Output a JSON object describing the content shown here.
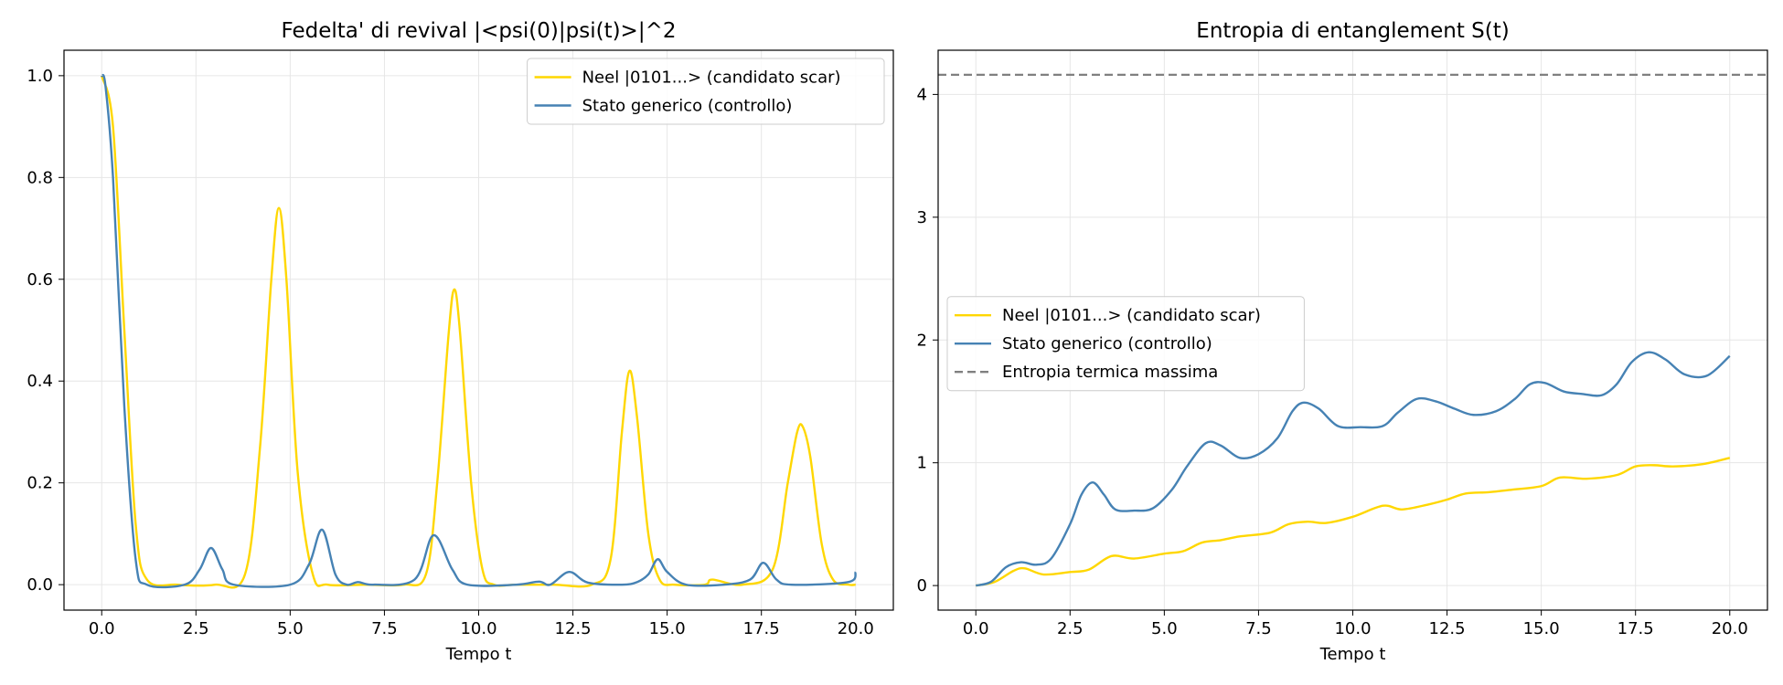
{
  "colors": {
    "scar": "#FFD700",
    "generic": "#4682B4",
    "thermal": "#808080"
  },
  "chart_data": [
    {
      "type": "line",
      "title": "Fedelta' di revival |<psi(0)|psi(t)>|^2",
      "xlabel": "Tempo t",
      "ylabel": "",
      "xlim": [
        -1.0,
        21.0
      ],
      "ylim": [
        -0.05,
        1.05
      ],
      "xticks": [
        0,
        2.5,
        5,
        7.5,
        10,
        12.5,
        15,
        17.5,
        20
      ],
      "xtick_labels": [
        "0.0",
        "2.5",
        "5.0",
        "7.5",
        "10.0",
        "12.5",
        "15.0",
        "17.5",
        "20.0"
      ],
      "yticks": [
        0,
        0.2,
        0.4,
        0.6,
        0.8,
        1.0
      ],
      "ytick_labels": [
        "0.0",
        "0.2",
        "0.4",
        "0.6",
        "0.8",
        "1.0"
      ],
      "grid": true,
      "legend_position": "top-right",
      "series": [
        {
          "name": "Neel |0101...> (candidato scar)",
          "color": "#FFD700",
          "x": [
            0,
            0.3,
            0.6,
            0.9,
            1.2,
            2.0,
            3.0,
            3.8,
            4.2,
            4.5,
            4.7,
            4.9,
            5.2,
            5.6,
            6.0,
            7.0,
            8.0,
            8.6,
            8.9,
            9.2,
            9.35,
            9.5,
            9.8,
            10.1,
            10.4,
            11.0,
            12.0,
            13.0,
            13.5,
            13.8,
            14.0,
            14.2,
            14.5,
            14.8,
            15.2,
            16.0,
            16.2,
            17.0,
            17.8,
            18.2,
            18.45,
            18.6,
            18.8,
            19.1,
            19.4,
            19.8,
            20.0
          ],
          "y": [
            1.0,
            0.9,
            0.5,
            0.12,
            0.01,
            0.0,
            0.0,
            0.02,
            0.27,
            0.6,
            0.74,
            0.6,
            0.22,
            0.02,
            0.0,
            0.0,
            0.0,
            0.02,
            0.2,
            0.49,
            0.58,
            0.5,
            0.2,
            0.03,
            0.0,
            0.0,
            0.0,
            0.0,
            0.05,
            0.3,
            0.42,
            0.33,
            0.1,
            0.01,
            0.0,
            0.0,
            0.01,
            0.0,
            0.03,
            0.2,
            0.3,
            0.31,
            0.25,
            0.08,
            0.01,
            0.0,
            0.0
          ]
        },
        {
          "name": "Stato generico (controllo)",
          "color": "#4682B4",
          "x": [
            0,
            0.1,
            0.3,
            0.6,
            0.9,
            1.2,
            2.2,
            2.6,
            2.9,
            3.2,
            3.5,
            5.0,
            5.5,
            5.85,
            6.2,
            6.5,
            6.8,
            7.2,
            8.3,
            8.8,
            9.3,
            9.7,
            11.0,
            11.6,
            11.9,
            12.4,
            12.9,
            13.8,
            14.2,
            14.5,
            14.75,
            15.0,
            15.5,
            16.5,
            17.2,
            17.55,
            17.9,
            18.3,
            19.8,
            20.0
          ],
          "y": [
            1.0,
            0.98,
            0.8,
            0.35,
            0.05,
            0.0,
            0.0,
            0.03,
            0.072,
            0.03,
            0.0,
            0.0,
            0.04,
            0.108,
            0.02,
            0.0,
            0.005,
            0.0,
            0.01,
            0.097,
            0.03,
            0.0,
            0.0,
            0.006,
            0.0,
            0.025,
            0.004,
            0.0,
            0.005,
            0.02,
            0.05,
            0.025,
            0.0,
            0.0,
            0.01,
            0.043,
            0.01,
            0.0,
            0.005,
            0.025
          ]
        }
      ]
    },
    {
      "type": "line",
      "title": "Entropia di entanglement S(t)",
      "xlabel": "Tempo t",
      "ylabel": "",
      "xlim": [
        -1.0,
        21.0
      ],
      "ylim": [
        -0.2,
        4.36
      ],
      "xticks": [
        0,
        2.5,
        5,
        7.5,
        10,
        12.5,
        15,
        17.5,
        20
      ],
      "xtick_labels": [
        "0.0",
        "2.5",
        "5.0",
        "7.5",
        "10.0",
        "12.5",
        "15.0",
        "17.5",
        "20.0"
      ],
      "yticks": [
        0,
        1,
        2,
        3,
        4
      ],
      "ytick_labels": [
        "0",
        "1",
        "2",
        "3",
        "4"
      ],
      "grid": true,
      "legend_position": "center-left",
      "series": [
        {
          "name": "Neel |0101...> (candidato scar)",
          "color": "#FFD700",
          "x": [
            0,
            0.5,
            1.0,
            1.3,
            1.8,
            2.5,
            3.0,
            3.6,
            4.2,
            5.0,
            5.5,
            6.0,
            6.5,
            7.0,
            7.8,
            8.3,
            8.8,
            9.3,
            10.0,
            10.8,
            11.3,
            12.0,
            12.5,
            13.0,
            13.6,
            14.2,
            15.0,
            15.5,
            16.2,
            17.0,
            17.5,
            18.0,
            18.5,
            19.3,
            20.0
          ],
          "y": [
            0.0,
            0.03,
            0.12,
            0.14,
            0.09,
            0.11,
            0.13,
            0.24,
            0.22,
            0.26,
            0.28,
            0.35,
            0.37,
            0.4,
            0.43,
            0.5,
            0.52,
            0.51,
            0.56,
            0.65,
            0.62,
            0.66,
            0.7,
            0.75,
            0.76,
            0.78,
            0.81,
            0.88,
            0.87,
            0.9,
            0.97,
            0.98,
            0.97,
            0.99,
            1.04
          ]
        },
        {
          "name": "Stato generico (controllo)",
          "color": "#4682B4",
          "x": [
            0,
            0.4,
            0.8,
            1.2,
            1.6,
            2.0,
            2.5,
            2.8,
            3.1,
            3.4,
            3.7,
            4.2,
            4.7,
            5.2,
            5.6,
            6.1,
            6.5,
            7.0,
            7.5,
            8.0,
            8.4,
            8.7,
            9.1,
            9.6,
            10.2,
            10.8,
            11.2,
            11.7,
            12.2,
            12.7,
            13.2,
            13.8,
            14.3,
            14.7,
            15.1,
            15.6,
            16.1,
            16.6,
            17.0,
            17.4,
            17.85,
            18.3,
            18.8,
            19.4,
            20.0
          ],
          "y": [
            0.0,
            0.03,
            0.15,
            0.19,
            0.17,
            0.22,
            0.5,
            0.74,
            0.84,
            0.74,
            0.62,
            0.61,
            0.63,
            0.78,
            0.97,
            1.16,
            1.14,
            1.04,
            1.07,
            1.2,
            1.42,
            1.49,
            1.44,
            1.3,
            1.29,
            1.3,
            1.41,
            1.52,
            1.5,
            1.44,
            1.39,
            1.42,
            1.52,
            1.64,
            1.65,
            1.58,
            1.56,
            1.55,
            1.64,
            1.82,
            1.9,
            1.84,
            1.72,
            1.71,
            1.87
          ]
        },
        {
          "name": "Entropia termica massima",
          "color": "#808080",
          "dashed": true,
          "hline": 4.16
        }
      ]
    }
  ]
}
